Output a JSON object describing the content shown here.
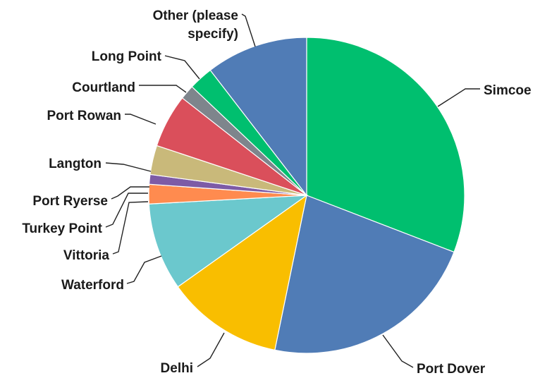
{
  "chart_data": {
    "type": "pie",
    "title": "",
    "slices": [
      {
        "label": "Simcoe",
        "value": 31.0,
        "color": "#00BF6F"
      },
      {
        "label": "Port Dover",
        "value": 22.5,
        "color": "#507CB6"
      },
      {
        "label": "Delhi",
        "value": 12.0,
        "color": "#F9BE00"
      },
      {
        "label": "Waterford",
        "value": 9.0,
        "color": "#6BC8CD"
      },
      {
        "label": "Vittoria",
        "value": 0.0,
        "color": "#E8A23B"
      },
      {
        "label": "Turkey Point",
        "value": 2.0,
        "color": "#FF8B4F"
      },
      {
        "label": "Port Ryerse",
        "value": 1.0,
        "color": "#7D5BA6"
      },
      {
        "label": "Langton",
        "value": 3.0,
        "color": "#C9B97A"
      },
      {
        "label": "Port Rowan",
        "value": 5.5,
        "color": "#DA4F5B"
      },
      {
        "label": "Courtland",
        "value": 1.5,
        "color": "#7E858C"
      },
      {
        "label": "Long Point",
        "value": 2.5,
        "color": "#00BF6F"
      },
      {
        "label": "Other (please specify)",
        "value": 10.5,
        "color": "#507CB6"
      }
    ],
    "legend": "none"
  }
}
